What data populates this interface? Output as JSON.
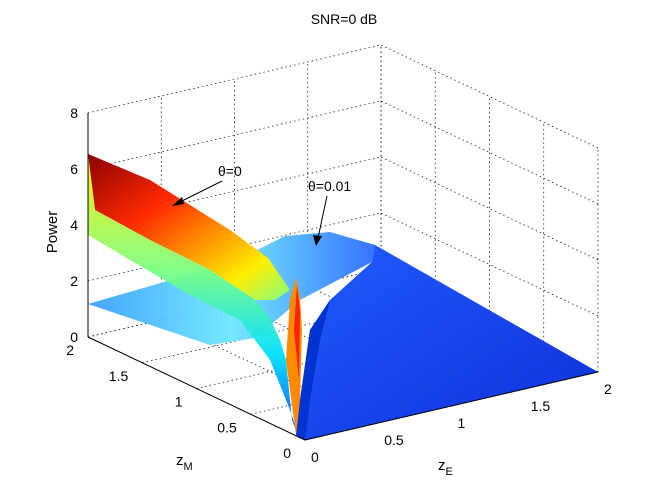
{
  "chart_data": {
    "type": "surface",
    "title": "SNR=0 dB",
    "xlabel": "z",
    "xlabel_sub": "E",
    "ylabel": "z",
    "ylabel_sub": "M",
    "zlabel": "Power",
    "xlim": [
      0,
      2
    ],
    "ylim": [
      0,
      2
    ],
    "zlim": [
      0,
      8
    ],
    "x_ticks": [
      "0",
      "0.5",
      "1",
      "1.5",
      "2"
    ],
    "y_ticks": [
      "0",
      "0.5",
      "1",
      "1.5",
      "2"
    ],
    "z_ticks": [
      "0",
      "2",
      "4",
      "6",
      "8"
    ],
    "grid": true,
    "colormap": "jet",
    "series": [
      {
        "name": "θ=0",
        "peak_power": 6.5,
        "description_values": {
          "at_zE0_zM2": 6.5,
          "at_zE0_zM0": 0
        }
      },
      {
        "name": "θ=0.01",
        "plateau_power": 1.2,
        "ridge_power": 3.6,
        "description_values": {
          "at_zE2_zM2": 1.2,
          "ridge_near_zE0.6_zM1.5": 3.6
        }
      }
    ],
    "annotations": [
      {
        "text": "θ=0",
        "target_series": "θ=0"
      },
      {
        "text": "θ=0.01",
        "target_series": "θ=0.01"
      }
    ]
  }
}
